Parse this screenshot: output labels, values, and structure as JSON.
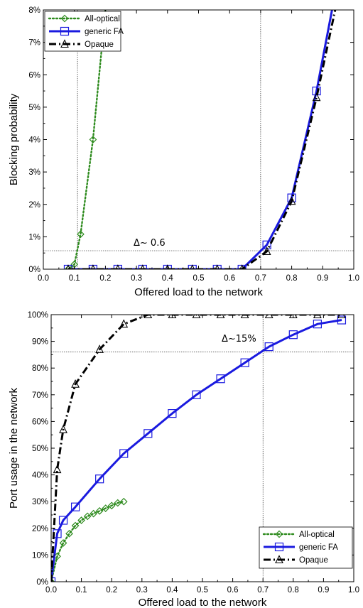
{
  "colors": {
    "all_optical": "#2e8b1e",
    "generic_fa": "#1a1adf",
    "opaque": "#000000"
  },
  "chart_data": [
    {
      "type": "line",
      "xlabel": "Offered load to the network",
      "ylabel": "Blocking probability",
      "xlim": [
        0.0,
        1.0
      ],
      "ylim": [
        0,
        8
      ],
      "x_ticks": [
        "0.0",
        "0.1",
        "0.2",
        "0.3",
        "0.4",
        "0.5",
        "0.6",
        "0.7",
        "0.8",
        "0.9",
        "1.0"
      ],
      "y_ticks": [
        "0%",
        "1%",
        "2%",
        "3%",
        "4%",
        "5%",
        "6%",
        "7%",
        "8%"
      ],
      "legend_position": "top-left",
      "annotation": "Δ~ 0.6",
      "guides": {
        "vertical_x": [
          0.11,
          0.7
        ],
        "horizontal_y": 0.57
      },
      "series": [
        {
          "name": "All-optical",
          "marker": "diamond",
          "line": "dotted",
          "x": [
            0.08,
            0.1,
            0.12,
            0.16,
            0.2
          ],
          "y": [
            0.0,
            0.15,
            1.08,
            4.0,
            8.0
          ],
          "marker_x": [
            0.08,
            0.1,
            0.12,
            0.16
          ],
          "marker_y": [
            0.0,
            0.15,
            1.08,
            4.0
          ]
        },
        {
          "name": "generic FA",
          "marker": "square",
          "line": "solid",
          "x": [
            0.08,
            0.16,
            0.24,
            0.32,
            0.4,
            0.48,
            0.56,
            0.64,
            0.72,
            0.8,
            0.88,
            0.93
          ],
          "y": [
            0.0,
            0.0,
            0.0,
            0.0,
            0.0,
            0.0,
            0.0,
            0.0,
            0.75,
            2.2,
            5.5,
            8.0
          ],
          "marker_x": [
            0.08,
            0.16,
            0.24,
            0.32,
            0.4,
            0.48,
            0.56,
            0.64,
            0.72,
            0.8,
            0.88
          ],
          "marker_y": [
            0.0,
            0.0,
            0.0,
            0.0,
            0.0,
            0.0,
            0.0,
            0.0,
            0.75,
            2.2,
            5.5
          ]
        },
        {
          "name": "Opaque",
          "marker": "triangle",
          "line": "dashdot",
          "x": [
            0.08,
            0.16,
            0.24,
            0.32,
            0.4,
            0.48,
            0.56,
            0.64,
            0.72,
            0.8,
            0.88,
            0.94
          ],
          "y": [
            0.0,
            0.0,
            0.0,
            0.0,
            0.0,
            0.0,
            0.0,
            0.0,
            0.55,
            2.1,
            5.3,
            8.0
          ],
          "marker_x": [
            0.08,
            0.16,
            0.24,
            0.32,
            0.4,
            0.48,
            0.56,
            0.64,
            0.72,
            0.8,
            0.88
          ],
          "marker_y": [
            0.0,
            0.0,
            0.0,
            0.0,
            0.0,
            0.0,
            0.0,
            0.0,
            0.55,
            2.1,
            5.3
          ]
        }
      ]
    },
    {
      "type": "line",
      "xlabel": "Offered load to the network",
      "ylabel": "Port usage in the network",
      "xlim": [
        0.0,
        1.0
      ],
      "ylim": [
        0,
        100
      ],
      "x_ticks": [
        "0.0",
        "0.1",
        "0.2",
        "0.3",
        "0.4",
        "0.5",
        "0.6",
        "0.7",
        "0.8",
        "0.9",
        "1.0"
      ],
      "y_ticks": [
        "0%",
        "10%",
        "20%",
        "30%",
        "40%",
        "50%",
        "60%",
        "70%",
        "80%",
        "90%",
        "100%"
      ],
      "legend_position": "bottom-right",
      "annotation": "Δ~15%",
      "guides": {
        "vertical_x": [
          0.7
        ],
        "horizontal_y": 86
      },
      "series": [
        {
          "name": "All-optical",
          "marker": "diamond",
          "line": "dotted",
          "x": [
            0.0,
            0.02,
            0.04,
            0.06,
            0.08,
            0.1,
            0.12,
            0.14,
            0.16,
            0.18,
            0.2,
            0.22,
            0.24
          ],
          "y": [
            0.0,
            9.5,
            14.5,
            18,
            21,
            23,
            24.5,
            25.5,
            26.5,
            27.5,
            28.5,
            29.5,
            30
          ]
        },
        {
          "name": "generic FA",
          "marker": "square",
          "line": "solid",
          "x": [
            0.0,
            0.02,
            0.04,
            0.08,
            0.16,
            0.24,
            0.32,
            0.4,
            0.48,
            0.56,
            0.64,
            0.72,
            0.8,
            0.88,
            0.96
          ],
          "y": [
            0.0,
            18,
            23,
            28,
            38.5,
            48,
            55.5,
            63,
            70,
            76,
            82,
            88,
            92.5,
            96.5,
            98
          ]
        },
        {
          "name": "Opaque",
          "marker": "triangle",
          "line": "dashdot",
          "x": [
            0.0,
            0.02,
            0.04,
            0.08,
            0.16,
            0.24,
            0.32,
            0.4,
            0.48,
            0.56,
            0.64,
            0.72,
            0.8,
            0.88,
            0.96
          ],
          "y": [
            0.0,
            42,
            57,
            74,
            87,
            96.5,
            100,
            100,
            100,
            100,
            100,
            100,
            100,
            100,
            100
          ]
        }
      ]
    }
  ]
}
